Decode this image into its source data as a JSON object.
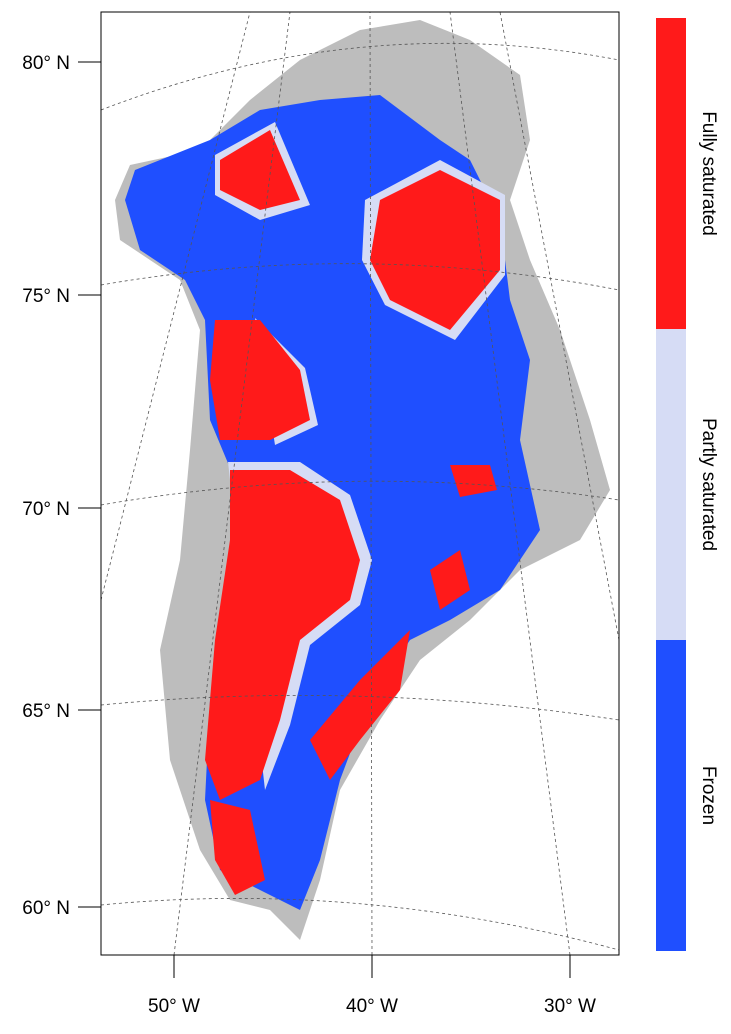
{
  "map": {
    "lat_labels": [
      "80° N",
      "75° N",
      "70° N",
      "65° N",
      "60° N"
    ],
    "lon_labels": [
      "50° W",
      "40° W",
      "30° W"
    ]
  },
  "legend": [
    {
      "label": "Fully saturated",
      "color": "#ff1a1a"
    },
    {
      "label": "Partly saturated",
      "color": "#d6dcf5"
    },
    {
      "label": "Frozen",
      "color": "#1f4fff"
    }
  ]
}
